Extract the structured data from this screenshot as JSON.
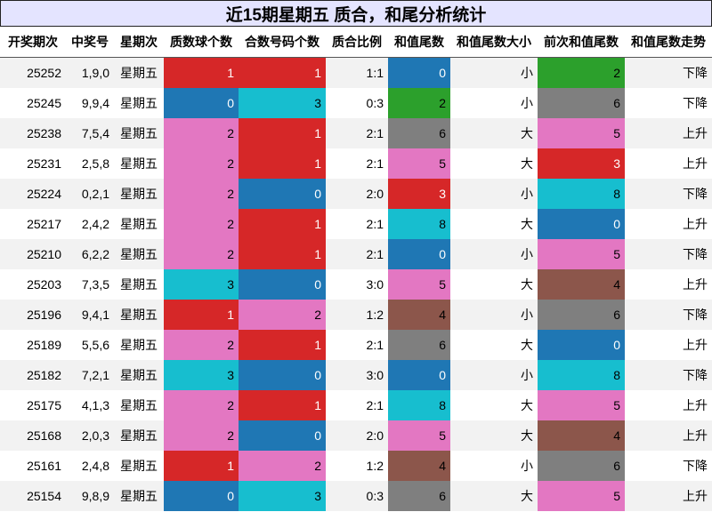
{
  "title": "近15期星期五 质合，和尾分析统计",
  "headers": [
    "开奖期次",
    "中奖号",
    "星期次",
    "质数球个数",
    "合数号码个数",
    "质合比例",
    "和值尾数",
    "和值尾数大小",
    "前次和值尾数",
    "和值尾数走势"
  ],
  "colors": {
    "blue": "#1f77b4",
    "cyan": "#17becf",
    "red": "#d62728",
    "pink": "#e377c2",
    "green": "#2ca02c",
    "gray": "#7f7f7f",
    "brown": "#8c564b"
  },
  "rows": [
    {
      "period": "25252",
      "numbers": "1,9,0",
      "weekday": "星期五",
      "prime_count": "1",
      "composite_count": "1",
      "ratio": "1:1",
      "sum_tail": "0",
      "size": "小",
      "prev_tail": "2",
      "trend": "下降"
    },
    {
      "period": "25245",
      "numbers": "9,9,4",
      "weekday": "星期五",
      "prime_count": "0",
      "composite_count": "3",
      "ratio": "0:3",
      "sum_tail": "2",
      "size": "小",
      "prev_tail": "6",
      "trend": "下降"
    },
    {
      "period": "25238",
      "numbers": "7,5,4",
      "weekday": "星期五",
      "prime_count": "2",
      "composite_count": "1",
      "ratio": "2:1",
      "sum_tail": "6",
      "size": "大",
      "prev_tail": "5",
      "trend": "上升"
    },
    {
      "period": "25231",
      "numbers": "2,5,8",
      "weekday": "星期五",
      "prime_count": "2",
      "composite_count": "1",
      "ratio": "2:1",
      "sum_tail": "5",
      "size": "大",
      "prev_tail": "3",
      "trend": "上升"
    },
    {
      "period": "25224",
      "numbers": "0,2,1",
      "weekday": "星期五",
      "prime_count": "2",
      "composite_count": "0",
      "ratio": "2:0",
      "sum_tail": "3",
      "size": "小",
      "prev_tail": "8",
      "trend": "下降"
    },
    {
      "period": "25217",
      "numbers": "2,4,2",
      "weekday": "星期五",
      "prime_count": "2",
      "composite_count": "1",
      "ratio": "2:1",
      "sum_tail": "8",
      "size": "大",
      "prev_tail": "0",
      "trend": "上升"
    },
    {
      "period": "25210",
      "numbers": "6,2,2",
      "weekday": "星期五",
      "prime_count": "2",
      "composite_count": "1",
      "ratio": "2:1",
      "sum_tail": "0",
      "size": "小",
      "prev_tail": "5",
      "trend": "下降"
    },
    {
      "period": "25203",
      "numbers": "7,3,5",
      "weekday": "星期五",
      "prime_count": "3",
      "composite_count": "0",
      "ratio": "3:0",
      "sum_tail": "5",
      "size": "大",
      "prev_tail": "4",
      "trend": "上升"
    },
    {
      "period": "25196",
      "numbers": "9,4,1",
      "weekday": "星期五",
      "prime_count": "1",
      "composite_count": "2",
      "ratio": "1:2",
      "sum_tail": "4",
      "size": "小",
      "prev_tail": "6",
      "trend": "下降"
    },
    {
      "period": "25189",
      "numbers": "5,5,6",
      "weekday": "星期五",
      "prime_count": "2",
      "composite_count": "1",
      "ratio": "2:1",
      "sum_tail": "6",
      "size": "大",
      "prev_tail": "0",
      "trend": "上升"
    },
    {
      "period": "25182",
      "numbers": "7,2,1",
      "weekday": "星期五",
      "prime_count": "3",
      "composite_count": "0",
      "ratio": "3:0",
      "sum_tail": "0",
      "size": "小",
      "prev_tail": "8",
      "trend": "下降"
    },
    {
      "period": "25175",
      "numbers": "4,1,3",
      "weekday": "星期五",
      "prime_count": "2",
      "composite_count": "1",
      "ratio": "2:1",
      "sum_tail": "8",
      "size": "大",
      "prev_tail": "5",
      "trend": "上升"
    },
    {
      "period": "25168",
      "numbers": "2,0,3",
      "weekday": "星期五",
      "prime_count": "2",
      "composite_count": "0",
      "ratio": "2:0",
      "sum_tail": "5",
      "size": "大",
      "prev_tail": "4",
      "trend": "上升"
    },
    {
      "period": "25161",
      "numbers": "2,4,8",
      "weekday": "星期五",
      "prime_count": "1",
      "composite_count": "2",
      "ratio": "1:2",
      "sum_tail": "4",
      "size": "小",
      "prev_tail": "6",
      "trend": "下降"
    },
    {
      "period": "25154",
      "numbers": "9,8,9",
      "weekday": "星期五",
      "prime_count": "0",
      "composite_count": "3",
      "ratio": "0:3",
      "sum_tail": "6",
      "size": "大",
      "prev_tail": "5",
      "trend": "上升"
    }
  ]
}
